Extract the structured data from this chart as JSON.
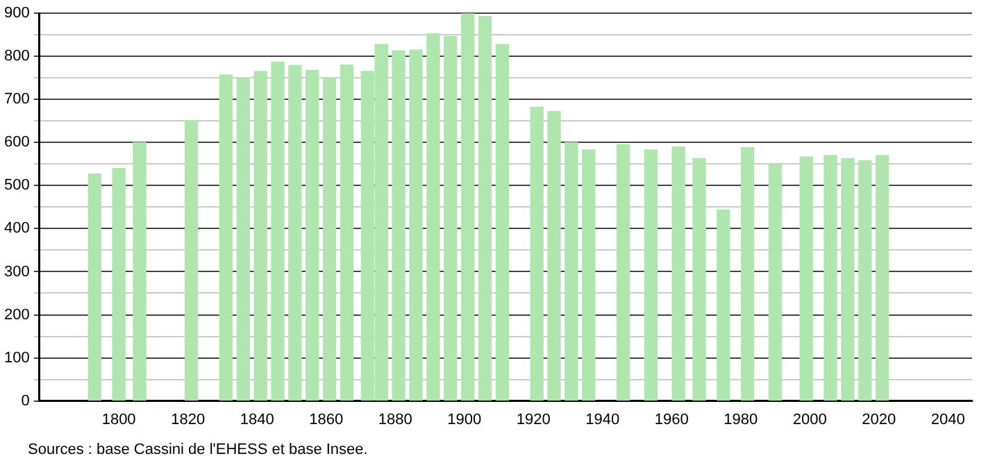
{
  "chart_data": {
    "type": "bar",
    "x": [
      1793,
      1800,
      1806,
      1821,
      1831,
      1836,
      1841,
      1846,
      1851,
      1856,
      1861,
      1866,
      1872,
      1876,
      1881,
      1886,
      1891,
      1896,
      1901,
      1906,
      1911,
      1921,
      1926,
      1931,
      1936,
      1946,
      1954,
      1962,
      1968,
      1975,
      1982,
      1990,
      1999,
      2006,
      2011,
      2016,
      2021
    ],
    "values": [
      527,
      540,
      600,
      650,
      757,
      750,
      765,
      787,
      779,
      768,
      750,
      780,
      765,
      828,
      813,
      815,
      853,
      846,
      900,
      893,
      828,
      682,
      672,
      600,
      583,
      595,
      583,
      590,
      563,
      443,
      588,
      550,
      567,
      570,
      563,
      558,
      570
    ],
    "color": "#b0e5b0",
    "xlim": [
      1777,
      2047
    ],
    "xticks": [
      1800,
      1820,
      1840,
      1860,
      1880,
      1900,
      1920,
      1940,
      1960,
      1980,
      2000,
      2020,
      2040
    ],
    "ylim": [
      0,
      900
    ],
    "yticks": [
      0,
      {
        "value": 50,
        "label": null
      },
      100,
      {
        "value": 150,
        "label": null
      },
      200,
      {
        "value": 250,
        "label": null
      },
      300,
      {
        "value": 350,
        "label": null
      },
      400,
      {
        "value": 450,
        "label": null
      },
      500,
      {
        "value": 550,
        "label": null
      },
      600,
      {
        "value": 650,
        "label": null
      },
      700,
      {
        "value": 750,
        "label": null
      },
      800,
      {
        "value": 850,
        "label": null
      },
      900
    ],
    "grid": "y",
    "legend": false,
    "annotations": [
      "Sources : base Cassini de l'EHESS et base Insee."
    ]
  }
}
